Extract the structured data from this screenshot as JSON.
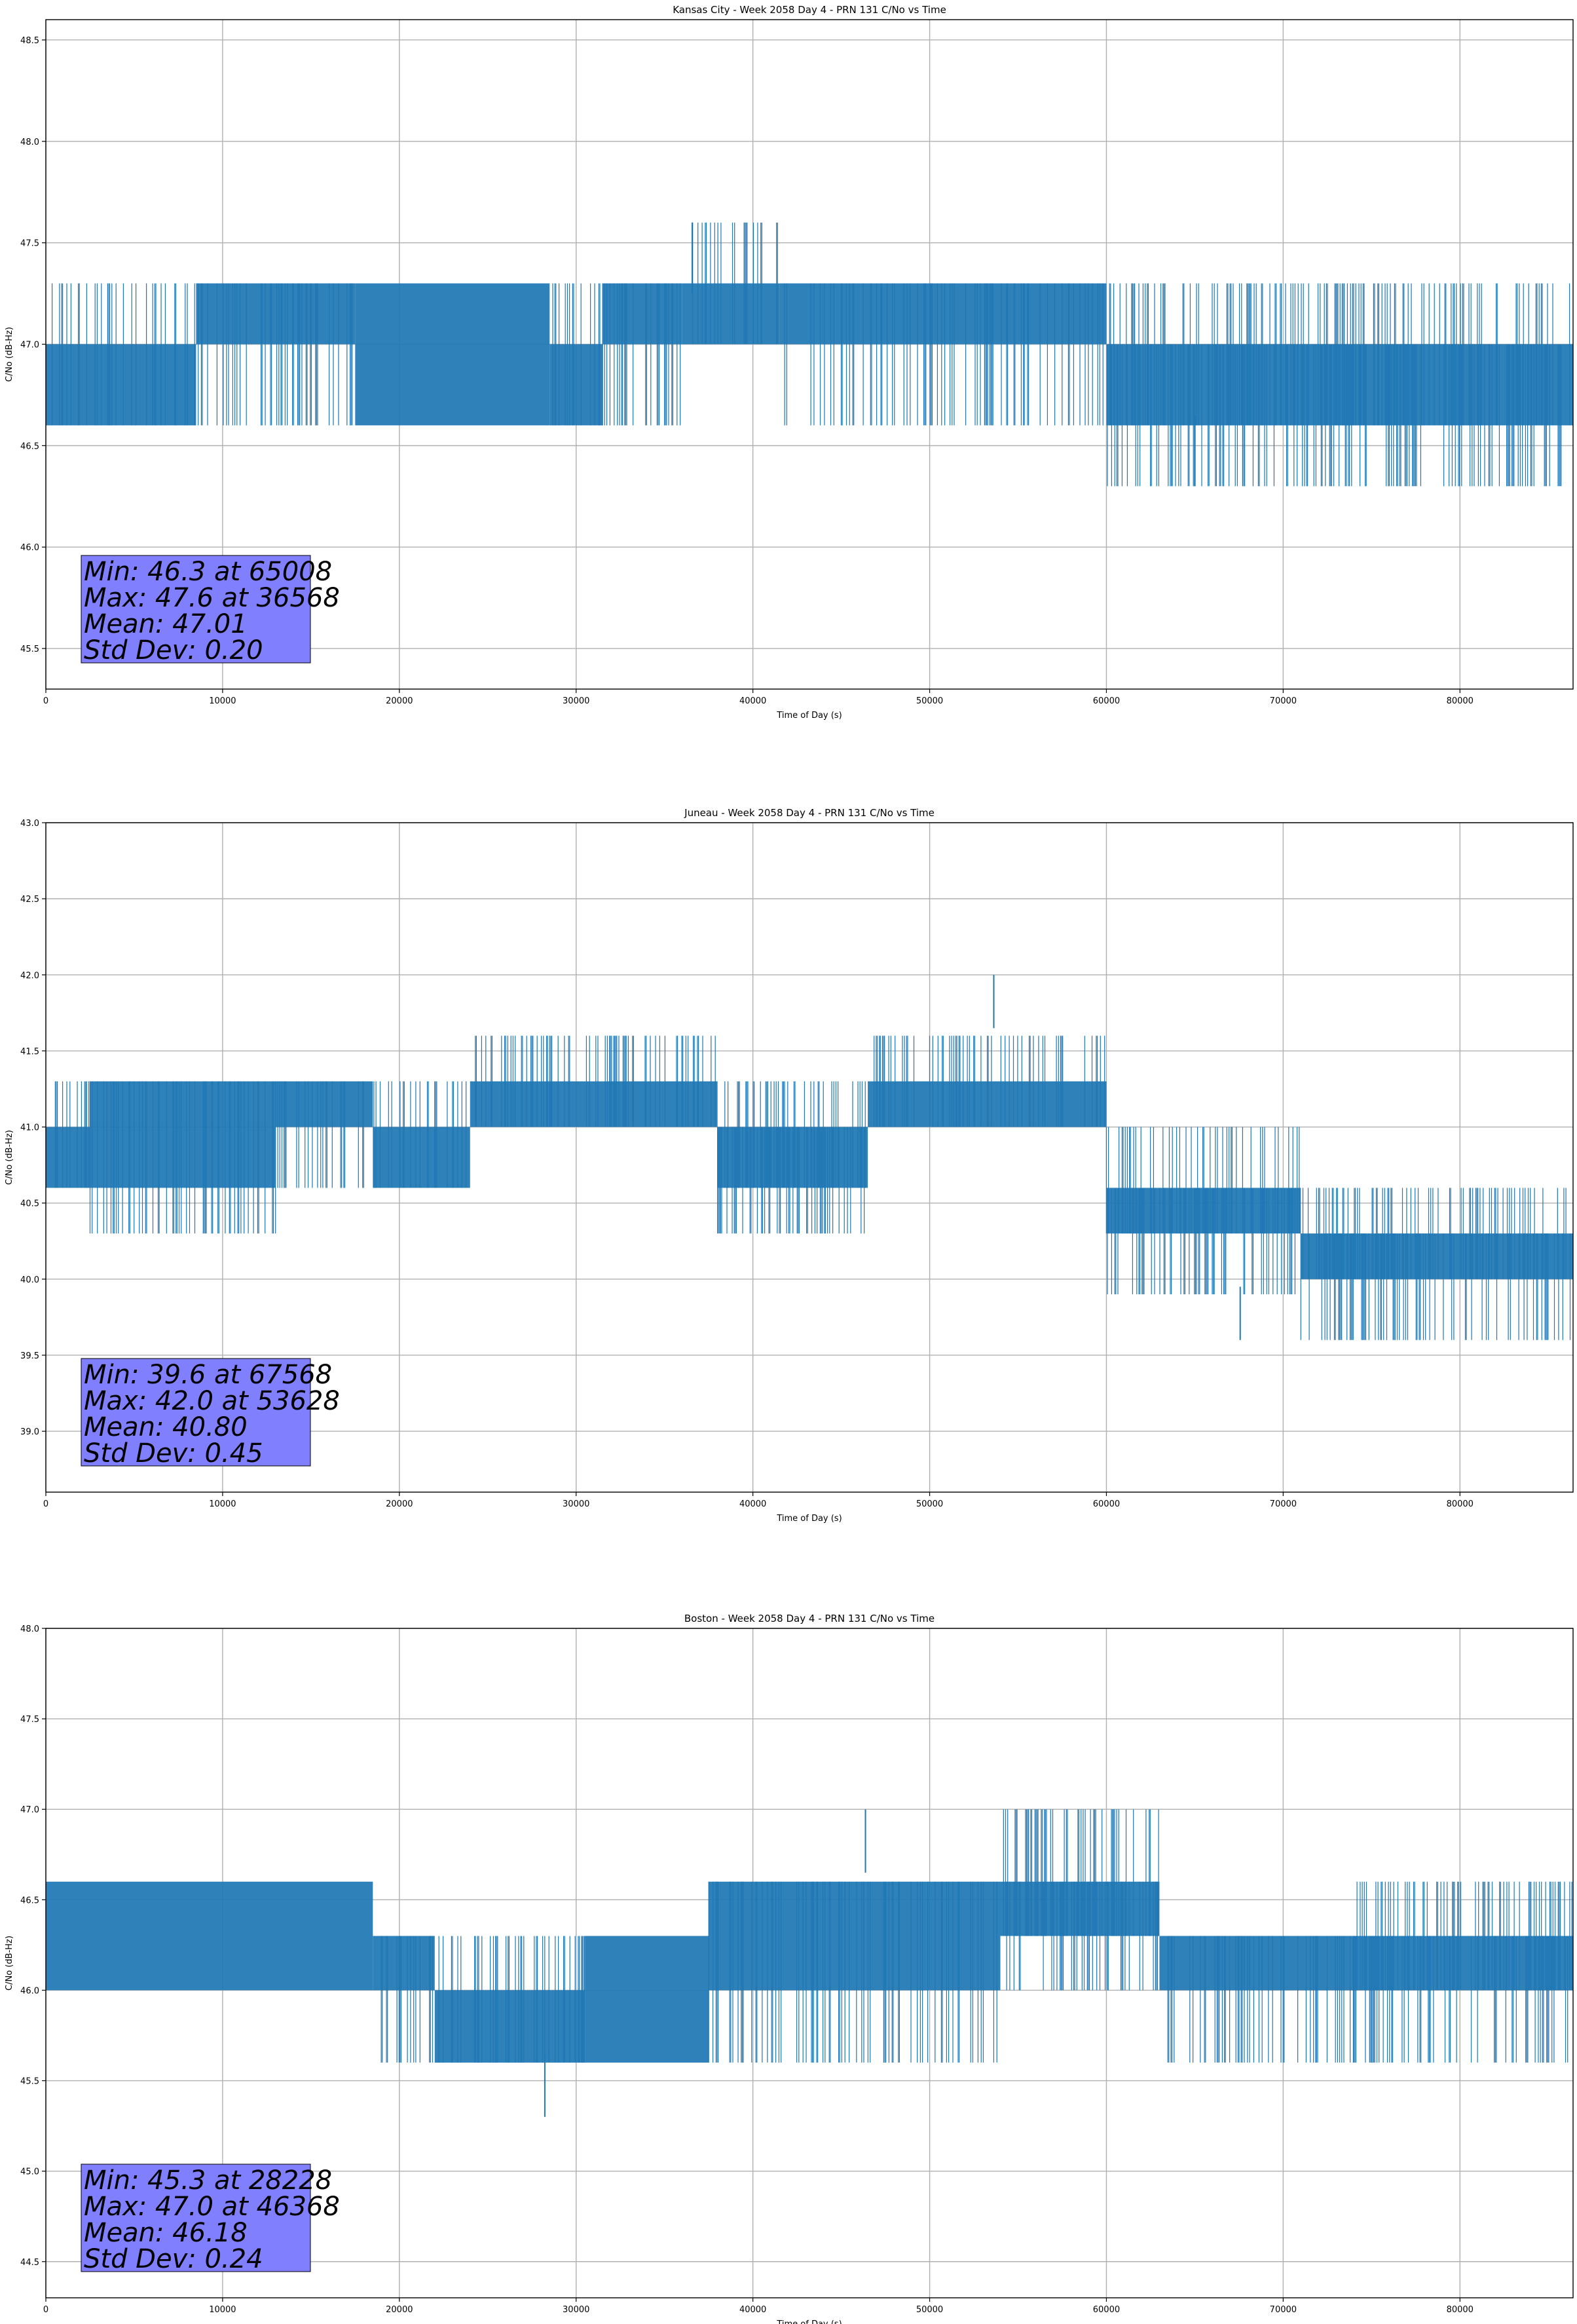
{
  "chart_data": [
    {
      "type": "line",
      "title": "Kansas City - Week 2058 Day 4 - PRN 131 C/No vs Time",
      "xlabel": "Time of Day (s)",
      "ylabel": "C/No (dB-Hz)",
      "xlim": [
        0,
        86400
      ],
      "ylim": [
        45.3,
        48.6
      ],
      "xticks": [
        0,
        10000,
        20000,
        30000,
        40000,
        50000,
        60000,
        70000,
        80000
      ],
      "yticks": [
        45.5,
        46.0,
        46.5,
        47.0,
        47.5,
        48.0,
        48.5
      ],
      "grid": true,
      "series_color": "#1f77b4",
      "segments": [
        {
          "x": [
            0,
            8500
          ],
          "band": [
            46.6,
            47.0
          ],
          "upper": 47.3
        },
        {
          "x": [
            8500,
            17500
          ],
          "band": [
            47.0,
            47.3
          ],
          "lower": 46.6
        },
        {
          "x": [
            17500,
            28500
          ],
          "band": [
            46.6,
            47.3
          ]
        },
        {
          "x": [
            28500,
            31500
          ],
          "band": [
            46.6,
            47.0
          ],
          "upper": 47.3
        },
        {
          "x": [
            31500,
            36000
          ],
          "band": [
            47.0,
            47.3
          ],
          "lower": 46.6
        },
        {
          "x": [
            36000,
            41500
          ],
          "band": [
            47.0,
            47.3
          ],
          "upper": 47.6
        },
        {
          "x": [
            41500,
            47000
          ],
          "band": [
            47.0,
            47.3
          ],
          "lower": 46.6
        },
        {
          "x": [
            47000,
            60000
          ],
          "band": [
            47.0,
            47.3
          ],
          "lower": 46.6
        },
        {
          "x": [
            60000,
            86400
          ],
          "band": [
            46.6,
            47.0
          ],
          "upper": 47.3,
          "lower": 46.3
        }
      ],
      "stats": {
        "min": "Min: 46.3 at 65008",
        "max": "Max: 47.6 at 36568",
        "mean": "Mean: 47.01",
        "std": "Std Dev: 0.20"
      }
    },
    {
      "type": "line",
      "title": "Juneau - Week 2058 Day 4 - PRN 131 C/No vs Time",
      "xlabel": "Time of Day (s)",
      "ylabel": "C/No (dB-Hz)",
      "xlim": [
        0,
        86400
      ],
      "ylim": [
        38.6,
        43.0
      ],
      "xticks": [
        0,
        10000,
        20000,
        30000,
        40000,
        50000,
        60000,
        70000,
        80000
      ],
      "yticks": [
        39.0,
        39.5,
        40.0,
        40.5,
        41.0,
        41.5,
        42.0,
        42.5,
        43.0
      ],
      "grid": true,
      "series_color": "#1f77b4",
      "segments": [
        {
          "x": [
            0,
            2500
          ],
          "band": [
            40.6,
            41.0
          ],
          "upper": 41.3
        },
        {
          "x": [
            2500,
            13000
          ],
          "band": [
            40.6,
            41.3
          ],
          "lower": 40.3
        },
        {
          "x": [
            13000,
            18500
          ],
          "band": [
            41.0,
            41.3
          ],
          "lower": 40.6
        },
        {
          "x": [
            18500,
            24000
          ],
          "band": [
            40.6,
            41.0
          ],
          "upper": 41.3
        },
        {
          "x": [
            24000,
            38000
          ],
          "band": [
            41.0,
            41.3
          ],
          "upper": 41.6
        },
        {
          "x": [
            38000,
            46500
          ],
          "band": [
            40.6,
            41.0
          ],
          "upper": 41.3,
          "lower": 40.3
        },
        {
          "x": [
            46500,
            60000
          ],
          "band": [
            41.0,
            41.3
          ],
          "upper": 41.6
        },
        {
          "x": [
            60000,
            71000
          ],
          "band": [
            40.3,
            40.6
          ],
          "upper": 41.0,
          "lower": 39.9
        },
        {
          "x": [
            71000,
            86400
          ],
          "band": [
            40.0,
            40.3
          ],
          "upper": 40.6,
          "lower": 39.6
        }
      ],
      "stats": {
        "min": "Min: 39.6 at 67568",
        "max": "Max: 42.0 at 53628",
        "mean": "Mean: 40.80",
        "std": "Std Dev: 0.45"
      }
    },
    {
      "type": "line",
      "title": "Boston - Week 2058 Day 4 - PRN 131 C/No vs Time",
      "xlabel": "Time of Day (s)",
      "ylabel": "C/No (dB-Hz)",
      "xlim": [
        0,
        86400
      ],
      "ylim": [
        44.3,
        48.0
      ],
      "xticks": [
        0,
        10000,
        20000,
        30000,
        40000,
        50000,
        60000,
        70000,
        80000
      ],
      "yticks": [
        44.5,
        45.0,
        45.5,
        46.0,
        46.5,
        47.0,
        47.5,
        48.0
      ],
      "grid": true,
      "series_color": "#1f77b4",
      "segments": [
        {
          "x": [
            0,
            18500
          ],
          "band": [
            46.0,
            46.6
          ]
        },
        {
          "x": [
            18500,
            22000
          ],
          "band": [
            46.0,
            46.3
          ],
          "lower": 45.6
        },
        {
          "x": [
            22000,
            30500
          ],
          "band": [
            45.6,
            46.0
          ],
          "upper": 46.3
        },
        {
          "x": [
            30500,
            37500
          ],
          "band": [
            45.6,
            46.3
          ]
        },
        {
          "x": [
            37500,
            54000
          ],
          "band": [
            46.0,
            46.6
          ],
          "lower": 45.6
        },
        {
          "x": [
            54000,
            63000
          ],
          "band": [
            46.3,
            46.6
          ],
          "upper": 47.0,
          "lower": 46.0
        },
        {
          "x": [
            63000,
            74000
          ],
          "band": [
            46.0,
            46.3
          ],
          "lower": 45.6
        },
        {
          "x": [
            74000,
            86400
          ],
          "band": [
            46.0,
            46.3
          ],
          "lower": 45.6,
          "upper": 46.6
        }
      ],
      "stats": {
        "min": "Min: 45.3 at 28228",
        "max": "Max: 47.0 at 46368",
        "mean": "Mean: 46.18",
        "std": "Std Dev: 0.24"
      }
    }
  ]
}
